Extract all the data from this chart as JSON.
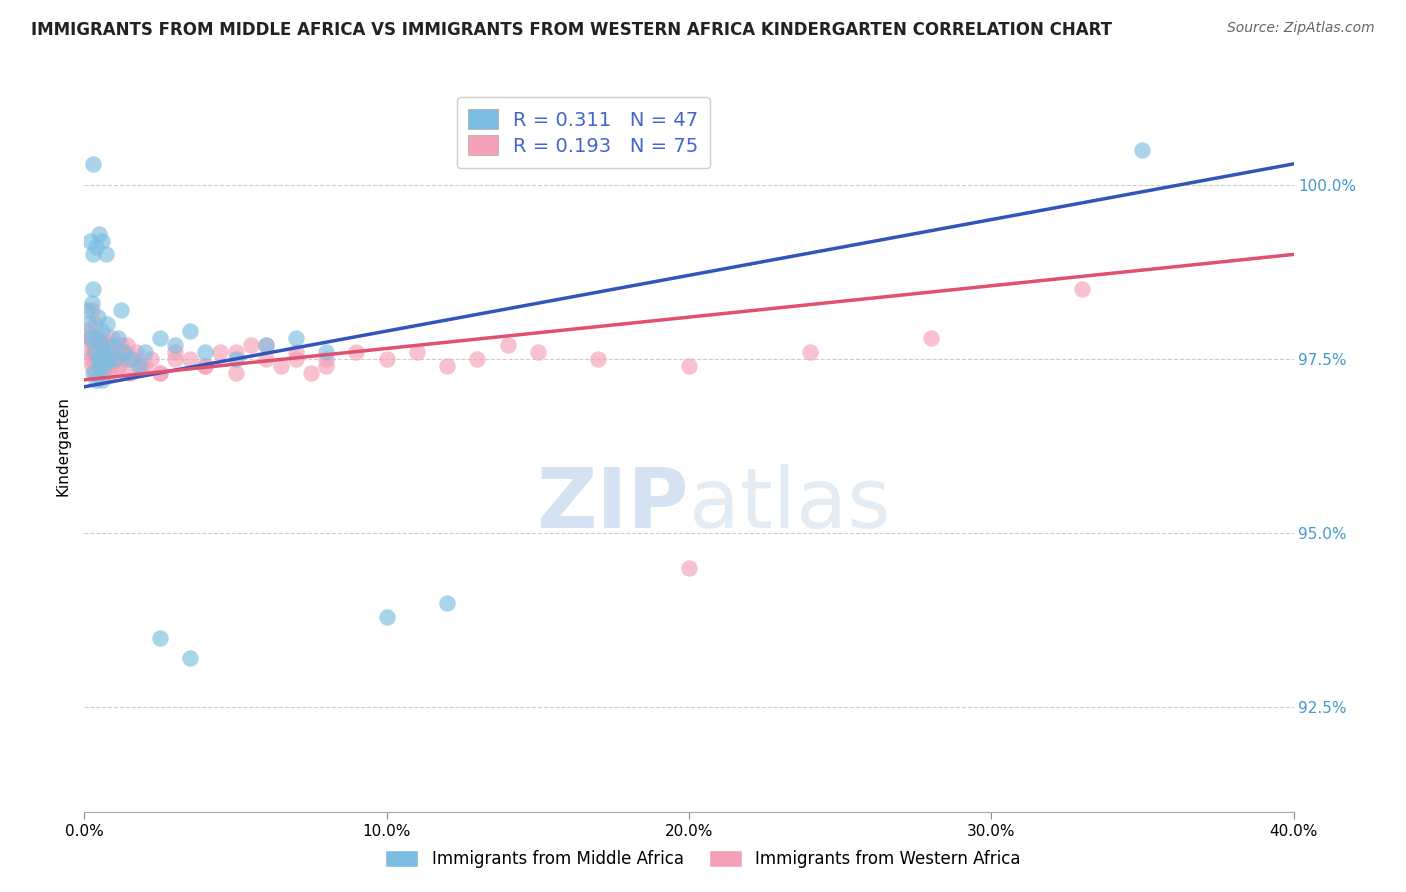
{
  "title": "IMMIGRANTS FROM MIDDLE AFRICA VS IMMIGRANTS FROM WESTERN AFRICA KINDERGARTEN CORRELATION CHART",
  "source": "Source: ZipAtlas.com",
  "ylabel_label": "Kindergarten",
  "xmin": 0.0,
  "xmax": 40.0,
  "ymin": 91.0,
  "ymax": 101.5,
  "yticks": [
    92.5,
    95.0,
    97.5,
    100.0
  ],
  "xtick_vals": [
    0.0,
    10.0,
    20.0,
    30.0,
    40.0
  ],
  "legend_r_blue": "0.311",
  "legend_n_blue": "47",
  "legend_r_pink": "0.193",
  "legend_n_pink": "75",
  "blue_color": "#7bbde0",
  "pink_color": "#f4a0b8",
  "blue_line_color": "#3355bb",
  "pink_line_color": "#e05070",
  "blue_line_x0": 0.0,
  "blue_line_y0": 97.1,
  "blue_line_x1": 40.0,
  "blue_line_y1": 100.3,
  "pink_line_x0": 0.0,
  "pink_line_y0": 97.2,
  "pink_line_x1": 40.0,
  "pink_line_y1": 99.0,
  "blue_x": [
    0.1,
    0.15,
    0.2,
    0.25,
    0.3,
    0.35,
    0.4,
    0.45,
    0.5,
    0.55,
    0.6,
    0.65,
    0.7,
    0.75,
    0.8,
    0.9,
    1.0,
    1.1,
    1.2,
    1.3,
    1.5,
    1.8,
    2.0,
    2.5,
    3.0,
    3.5,
    4.0,
    5.0,
    6.0,
    7.0,
    8.0,
    0.3,
    0.4,
    0.5,
    0.6,
    0.2,
    0.3,
    0.4,
    0.5,
    0.6,
    0.7,
    0.3,
    2.5,
    3.5,
    10.0,
    35.0,
    12.0
  ],
  "blue_y": [
    98.2,
    98.0,
    97.8,
    98.3,
    98.5,
    97.6,
    97.8,
    98.1,
    97.5,
    97.7,
    97.9,
    97.4,
    97.6,
    98.0,
    97.5,
    97.7,
    97.5,
    97.8,
    98.2,
    97.6,
    97.5,
    97.4,
    97.6,
    97.8,
    97.7,
    97.9,
    97.6,
    97.5,
    97.7,
    97.8,
    97.6,
    97.3,
    97.2,
    97.4,
    97.2,
    99.2,
    99.0,
    99.1,
    99.3,
    99.2,
    99.0,
    100.3,
    93.5,
    93.2,
    93.8,
    100.5,
    94.0
  ],
  "pink_x": [
    0.1,
    0.15,
    0.2,
    0.25,
    0.3,
    0.35,
    0.4,
    0.45,
    0.5,
    0.55,
    0.6,
    0.65,
    0.7,
    0.75,
    0.8,
    0.9,
    1.0,
    1.1,
    1.2,
    1.3,
    1.5,
    1.7,
    1.9,
    2.2,
    2.5,
    3.0,
    3.5,
    4.0,
    4.5,
    5.0,
    5.5,
    6.0,
    6.5,
    7.0,
    7.5,
    8.0,
    0.1,
    0.2,
    0.3,
    0.4,
    0.5,
    0.6,
    0.7,
    0.8,
    0.9,
    1.0,
    1.1,
    1.2,
    1.4,
    1.6,
    0.25,
    0.35,
    0.45,
    0.55,
    2.0,
    2.5,
    3.0,
    4.0,
    5.0,
    6.0,
    7.0,
    8.0,
    9.0,
    10.0,
    11.0,
    12.0,
    13.0,
    14.0,
    15.0,
    17.0,
    20.0,
    24.0,
    28.0,
    33.0,
    20.0
  ],
  "pink_y": [
    97.6,
    97.8,
    97.5,
    97.4,
    97.7,
    97.3,
    97.6,
    97.5,
    97.8,
    97.4,
    97.6,
    97.3,
    97.5,
    97.7,
    97.4,
    97.6,
    97.5,
    97.4,
    97.7,
    97.5,
    97.3,
    97.6,
    97.4,
    97.5,
    97.3,
    97.6,
    97.5,
    97.4,
    97.6,
    97.3,
    97.7,
    97.5,
    97.4,
    97.6,
    97.3,
    97.5,
    97.9,
    97.8,
    97.6,
    97.5,
    97.7,
    97.4,
    97.6,
    97.3,
    97.8,
    97.5,
    97.4,
    97.6,
    97.7,
    97.5,
    98.2,
    98.0,
    97.8,
    97.7,
    97.4,
    97.3,
    97.5,
    97.4,
    97.6,
    97.7,
    97.5,
    97.4,
    97.6,
    97.5,
    97.6,
    97.4,
    97.5,
    97.7,
    97.6,
    97.5,
    97.4,
    97.6,
    97.8,
    98.5,
    94.5
  ]
}
